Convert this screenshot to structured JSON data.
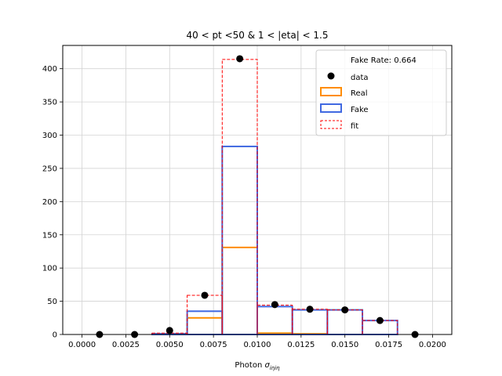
{
  "chart_data": {
    "type": "histogram",
    "title": "40 < pt <50 & 1 < |eta| < 1.5",
    "xlabel_main": "Photon ",
    "xlabel_math": "σ",
    "xlabel_sub": "iηiη",
    "ylabel": "",
    "xlim": [
      -0.0011,
      0.0211
    ],
    "ylim": [
      0,
      435
    ],
    "xticks": [
      0.0,
      0.0025,
      0.005,
      0.0075,
      0.01,
      0.0125,
      0.015,
      0.0175,
      0.02
    ],
    "xtick_labels": [
      "0.0000",
      "0.0025",
      "0.0050",
      "0.0075",
      "0.0100",
      "0.0125",
      "0.0150",
      "0.0175",
      "0.0200"
    ],
    "yticks": [
      0,
      50,
      100,
      150,
      200,
      250,
      300,
      350,
      400
    ],
    "ytick_labels": [
      "0",
      "50",
      "100",
      "150",
      "200",
      "250",
      "300",
      "350",
      "400"
    ],
    "grid": true,
    "bin_edges": [
      0.0,
      0.002,
      0.004,
      0.006,
      0.008,
      0.01,
      0.012,
      0.014,
      0.016,
      0.018,
      0.02
    ],
    "data_points": {
      "name": "data",
      "x": [
        0.001,
        0.003,
        0.005,
        0.007,
        0.009,
        0.011,
        0.013,
        0.015,
        0.017,
        0.019
      ],
      "y": [
        0,
        0,
        6,
        59,
        415,
        45,
        38,
        37,
        21,
        0
      ],
      "color": "#000000"
    },
    "series": [
      {
        "name": "Real",
        "color": "#ff8c00",
        "style": "step",
        "values": [
          0,
          0,
          1,
          25,
          131,
          2,
          1,
          0,
          0,
          0
        ]
      },
      {
        "name": "Fake",
        "color": "#4169e1",
        "style": "step",
        "values": [
          0,
          0,
          1,
          35,
          283,
          42,
          37,
          37,
          21,
          0
        ]
      },
      {
        "name": "fit",
        "color": "#ff0000",
        "style": "dashed",
        "values": [
          0,
          0,
          2,
          59,
          414,
          44,
          38,
          37,
          21,
          0
        ]
      }
    ],
    "legend": {
      "position": "top-right",
      "header": "Fake Rate: 0.664",
      "entries": [
        "data",
        "Real",
        "Fake",
        "fit"
      ]
    }
  }
}
